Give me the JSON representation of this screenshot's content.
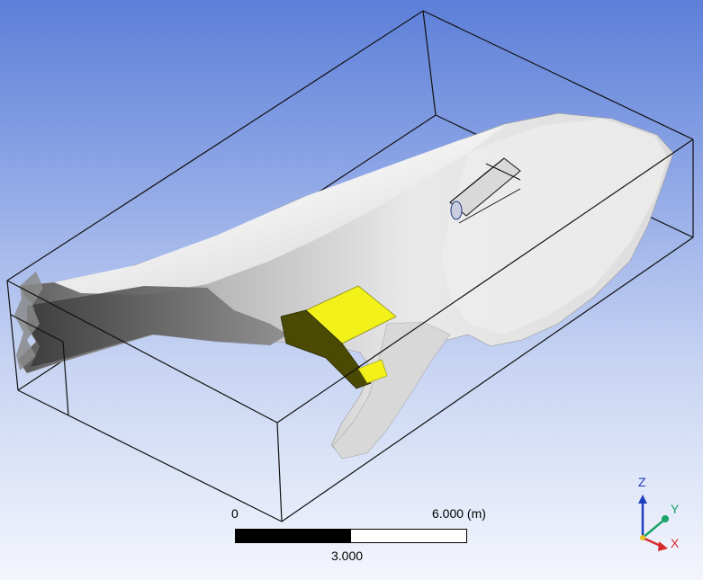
{
  "scale_bar": {
    "start_label": "0",
    "end_label": "6.000  (m)",
    "mid_label": "3.000",
    "filled_fraction": 0.5
  },
  "triad": {
    "z_label": "Z",
    "y_label": "Y",
    "x_label": "X",
    "colors": {
      "z": "#1f3fbf",
      "y": "#1aa36a",
      "x": "#d62a2a"
    }
  },
  "colors": {
    "background_top": "#5c7fd8",
    "background_bottom": "#f4f6fd",
    "geometry_surface": "#e6e6e6",
    "geometry_shadow": "#4c4c4c",
    "highlight_face": "#f2f21a",
    "highlight_face_dark": "#4a4a05",
    "bounding_box": "#111111"
  }
}
